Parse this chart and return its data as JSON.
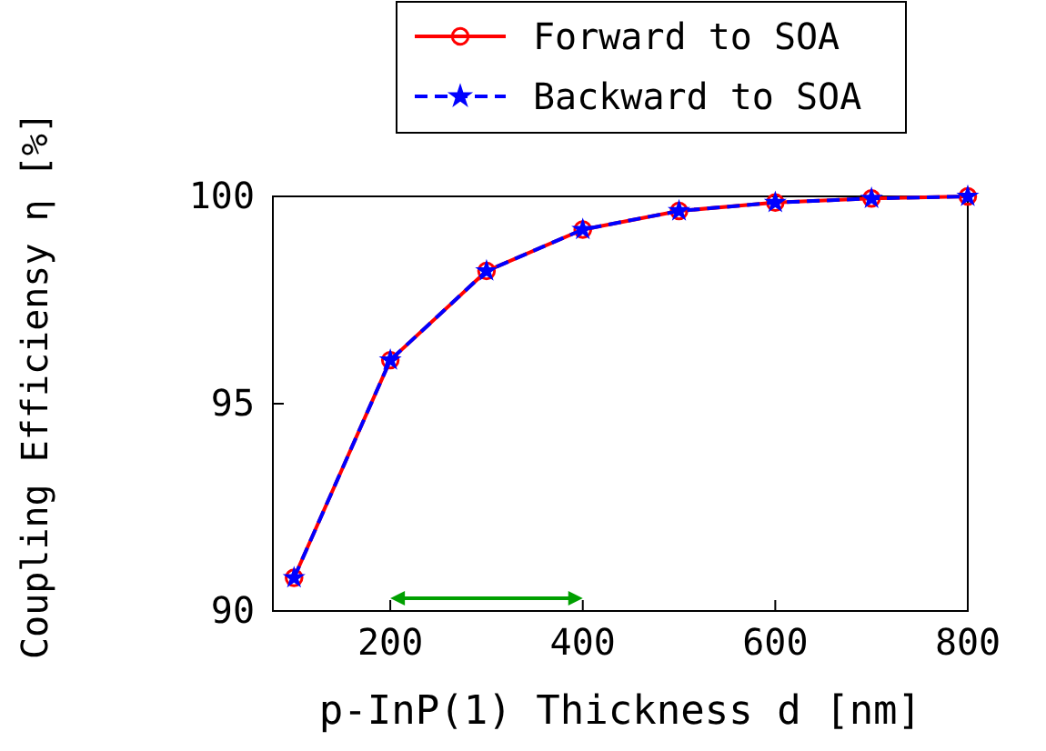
{
  "chart_data": {
    "type": "line",
    "xlabel": "p-InP(1) Thickness d [nm]",
    "ylabel": "Coupling Efficiensy η [%]",
    "x": [
      100,
      200,
      300,
      400,
      500,
      600,
      700,
      800
    ],
    "series": [
      {
        "name": "Forward to SOA",
        "color": "#ff0000",
        "values": [
          90.8,
          96.05,
          98.2,
          99.2,
          99.65,
          99.85,
          99.95,
          100
        ],
        "marker": "circle",
        "line_style": "solid"
      },
      {
        "name": "Backward to SOA",
        "color": "#0000ff",
        "values": [
          90.8,
          96.05,
          98.2,
          99.2,
          99.65,
          99.85,
          99.95,
          100
        ],
        "marker": "star",
        "line_style": "dashed"
      }
    ],
    "xlim": [
      78,
      800
    ],
    "ylim": [
      90,
      100
    ],
    "xticks": [
      200,
      400,
      600,
      800
    ],
    "yticks": [
      90,
      95,
      100
    ],
    "grid": false,
    "legend": "top"
  }
}
